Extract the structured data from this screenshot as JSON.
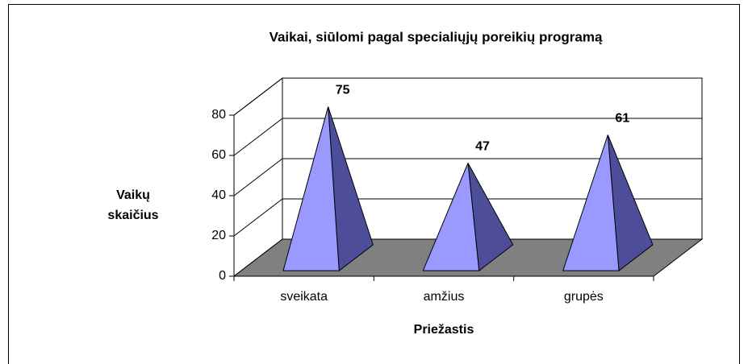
{
  "chart_data": {
    "type": "pyramid3d",
    "title": "Vaikai, siūlomi pagal specialiųjų poreikių programą",
    "y_label": [
      "Vaikų",
      "skaičius"
    ],
    "x_label": "Priežastis",
    "categories": [
      "sveikata",
      "amžius",
      "grupės"
    ],
    "values": [
      75,
      47,
      61
    ],
    "color": "#9999ff",
    "ylim": [
      0,
      80
    ],
    "yticks": [
      0,
      20,
      40,
      60,
      80
    ],
    "grid": true
  }
}
